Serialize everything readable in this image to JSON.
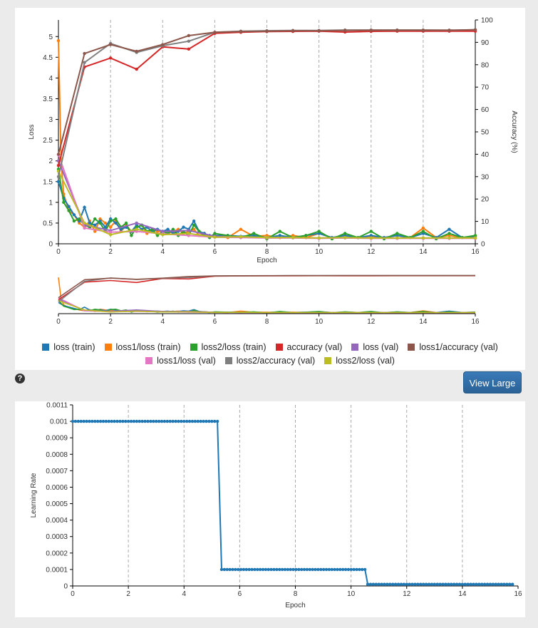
{
  "view_large_label": "View Large",
  "help_icon_glyph": "?",
  "colors": {
    "loss_train": "#1f77b4",
    "loss1_train": "#ff7f0e",
    "loss2_train": "#2ca02c",
    "accuracy_val": "#d62728",
    "loss_val": "#9467bd",
    "loss1_accuracy_val": "#8c564b",
    "loss1_loss_val": "#e377c2",
    "loss2_accuracy_val": "#7f7f7f",
    "loss2_loss_val": "#bcbd22",
    "lr": "#1f77b4"
  },
  "legend": [
    {
      "key": "loss_train",
      "label": "loss (train)"
    },
    {
      "key": "loss1_train",
      "label": "loss1/loss (train)"
    },
    {
      "key": "loss2_train",
      "label": "loss2/loss (train)"
    },
    {
      "key": "accuracy_val",
      "label": "accuracy (val)"
    },
    {
      "key": "loss_val",
      "label": "loss (val)"
    },
    {
      "key": "loss1_accuracy_val",
      "label": "loss1/accuracy (val)"
    },
    {
      "key": "loss1_loss_val",
      "label": "loss1/loss (val)"
    },
    {
      "key": "loss2_accuracy_val",
      "label": "loss2/accuracy (val)"
    },
    {
      "key": "loss2_loss_val",
      "label": "loss2/loss (val)"
    }
  ],
  "chart_data": [
    {
      "type": "line",
      "xlabel": "Epoch",
      "ylabel": "Loss",
      "y2label": "Accuracy (%)",
      "xlim": [
        0,
        16
      ],
      "ylim": [
        0,
        5.4
      ],
      "y2lim": [
        0,
        100
      ],
      "xticks": [
        "0",
        "2",
        "4",
        "6",
        "8",
        "10",
        "12",
        "14",
        "16"
      ],
      "yticks": [
        "0",
        "0.5",
        "1",
        "1.5",
        "2",
        "2.5",
        "3",
        "3.5",
        "4",
        "4.5",
        "5"
      ],
      "y2ticks": [
        "0",
        "10",
        "20",
        "30",
        "40",
        "50",
        "60",
        "70",
        "80",
        "90",
        "100"
      ],
      "grid": "vertical dashed",
      "series": [
        {
          "key": "accuracy_val",
          "axis": "right",
          "x": [
            0,
            1,
            2,
            3,
            4,
            5,
            6,
            7,
            8,
            9,
            10,
            11,
            12,
            13,
            14,
            15,
            16
          ],
          "y": [
            35,
            79,
            83,
            78,
            88,
            87,
            94,
            94.5,
            94.8,
            94.9,
            95,
            94.6,
            94.9,
            95,
            95,
            95,
            95
          ]
        },
        {
          "key": "loss1_accuracy_val",
          "axis": "right",
          "x": [
            0,
            1,
            2,
            3,
            4,
            5,
            6,
            7,
            8,
            9,
            10,
            11,
            12,
            13,
            14,
            15,
            16
          ],
          "y": [
            40,
            85,
            89,
            86,
            89,
            93,
            94.5,
            94.8,
            95,
            95.2,
            95.2,
            95.3,
            95.4,
            95.4,
            95.4,
            95.4,
            95.6
          ]
        },
        {
          "key": "loss2_accuracy_val",
          "axis": "right",
          "x": [
            0,
            1,
            2,
            3,
            4,
            5,
            6,
            7,
            8,
            9,
            10,
            11,
            12,
            13,
            14,
            15,
            16
          ],
          "y": [
            30,
            81,
            89.5,
            85.5,
            88.5,
            90.5,
            94.5,
            95,
            95.2,
            95.3,
            95.3,
            95.5,
            95.5,
            95.5,
            95.5,
            95.4,
            95.6
          ]
        },
        {
          "key": "loss_val",
          "axis": "left",
          "x": [
            0,
            1,
            2,
            3,
            4,
            5,
            6,
            7,
            8,
            9,
            10,
            11,
            12,
            13,
            14,
            15,
            16
          ],
          "y": [
            2.0,
            0.45,
            0.32,
            0.5,
            0.3,
            0.32,
            0.18,
            0.16,
            0.15,
            0.15,
            0.14,
            0.15,
            0.14,
            0.14,
            0.14,
            0.14,
            0.14
          ]
        },
        {
          "key": "loss1_loss_val",
          "axis": "left",
          "x": [
            0,
            1,
            2,
            3,
            4,
            5,
            6,
            7,
            8,
            9,
            10,
            11,
            12,
            13,
            14,
            15,
            16
          ],
          "y": [
            2.15,
            0.38,
            0.28,
            0.3,
            0.24,
            0.2,
            0.16,
            0.15,
            0.14,
            0.14,
            0.13,
            0.14,
            0.13,
            0.13,
            0.13,
            0.13,
            0.13
          ]
        },
        {
          "key": "loss2_loss_val",
          "axis": "left",
          "x": [
            0,
            1,
            2,
            3,
            4,
            5,
            6,
            7,
            8,
            9,
            10,
            11,
            12,
            13,
            14,
            15,
            16
          ],
          "y": [
            1.75,
            0.5,
            0.22,
            0.35,
            0.22,
            0.25,
            0.16,
            0.17,
            0.15,
            0.15,
            0.14,
            0.15,
            0.14,
            0.14,
            0.14,
            0.14,
            0.14
          ]
        },
        {
          "key": "loss_train",
          "axis": "left",
          "x": [
            0,
            0.2,
            0.4,
            0.6,
            0.8,
            1,
            1.2,
            1.4,
            1.6,
            1.8,
            2,
            2.2,
            2.4,
            2.6,
            2.8,
            3,
            3.2,
            3.4,
            3.6,
            3.8,
            4,
            4.2,
            4.4,
            4.6,
            4.8,
            5,
            5.2,
            5.4,
            5.6,
            5.8,
            6,
            6.5,
            7,
            7.5,
            8,
            8.5,
            9,
            9.5,
            10,
            10.5,
            11,
            11.5,
            12,
            12.5,
            13,
            13.5,
            14,
            14.5,
            15,
            15.5,
            16
          ],
          "y": [
            1.5,
            1.1,
            0.9,
            0.7,
            0.55,
            0.88,
            0.5,
            0.45,
            0.55,
            0.4,
            0.6,
            0.5,
            0.35,
            0.4,
            0.3,
            0.45,
            0.35,
            0.4,
            0.3,
            0.35,
            0.3,
            0.35,
            0.25,
            0.3,
            0.4,
            0.35,
            0.55,
            0.3,
            0.25,
            0.2,
            0.2,
            0.2,
            0.18,
            0.2,
            0.15,
            0.2,
            0.15,
            0.2,
            0.25,
            0.15,
            0.2,
            0.15,
            0.2,
            0.15,
            0.2,
            0.15,
            0.25,
            0.15,
            0.35,
            0.15,
            0.18
          ]
        },
        {
          "key": "loss1_train",
          "axis": "left",
          "x": [
            0,
            0.1,
            0.2,
            0.4,
            0.6,
            0.8,
            1,
            1.2,
            1.4,
            1.6,
            1.8,
            2,
            2.2,
            2.4,
            2.6,
            2.8,
            3,
            3.2,
            3.4,
            3.6,
            3.8,
            4,
            4.2,
            4.4,
            4.6,
            4.8,
            5,
            5.2,
            5.4,
            5.6,
            5.8,
            6,
            6.5,
            7,
            7.5,
            8,
            8.5,
            9,
            9.5,
            10,
            10.5,
            11,
            11.5,
            12,
            12.5,
            13,
            13.5,
            14,
            14.5,
            15,
            15.5,
            16
          ],
          "y": [
            4.9,
            2.0,
            1.2,
            0.8,
            0.7,
            0.5,
            0.4,
            0.55,
            0.3,
            0.6,
            0.5,
            0.4,
            0.55,
            0.3,
            0.45,
            0.3,
            0.4,
            0.45,
            0.25,
            0.35,
            0.3,
            0.3,
            0.25,
            0.3,
            0.35,
            0.25,
            0.3,
            0.35,
            0.2,
            0.25,
            0.18,
            0.2,
            0.15,
            0.35,
            0.18,
            0.2,
            0.15,
            0.2,
            0.15,
            0.25,
            0.15,
            0.2,
            0.15,
            0.18,
            0.15,
            0.2,
            0.15,
            0.38,
            0.15,
            0.2,
            0.15,
            0.18
          ]
        },
        {
          "key": "loss2_train",
          "axis": "left",
          "x": [
            0,
            0.2,
            0.4,
            0.6,
            0.8,
            1,
            1.2,
            1.4,
            1.6,
            1.8,
            2,
            2.2,
            2.4,
            2.6,
            2.8,
            3,
            3.2,
            3.4,
            3.6,
            3.8,
            4,
            4.2,
            4.4,
            4.6,
            4.8,
            5,
            5.2,
            5.4,
            5.6,
            5.8,
            6,
            6.5,
            7,
            7.5,
            8,
            8.5,
            9,
            9.5,
            10,
            10.5,
            11,
            11.5,
            12,
            12.5,
            13,
            13.5,
            14,
            14.5,
            15,
            15.5,
            16
          ],
          "y": [
            1.8,
            1.0,
            0.8,
            0.55,
            0.6,
            0.45,
            0.4,
            0.6,
            0.5,
            0.3,
            0.55,
            0.6,
            0.4,
            0.5,
            0.2,
            0.4,
            0.45,
            0.3,
            0.35,
            0.2,
            0.3,
            0.25,
            0.35,
            0.2,
            0.3,
            0.2,
            0.45,
            0.3,
            0.2,
            0.15,
            0.25,
            0.2,
            0.15,
            0.25,
            0.12,
            0.3,
            0.15,
            0.2,
            0.3,
            0.12,
            0.25,
            0.15,
            0.3,
            0.12,
            0.25,
            0.15,
            0.3,
            0.12,
            0.25,
            0.15,
            0.2
          ]
        }
      ]
    },
    {
      "type": "line",
      "role": "overview",
      "xlim": [
        0,
        16
      ],
      "xticks": [
        "0",
        "2",
        "4",
        "6",
        "8",
        "10",
        "12",
        "14",
        "16"
      ]
    },
    {
      "type": "line",
      "xlabel": "Epoch",
      "ylabel": "Learning Rate",
      "xlim": [
        0,
        16
      ],
      "ylim": [
        0,
        0.0011
      ],
      "xticks": [
        "0",
        "2",
        "4",
        "6",
        "8",
        "10",
        "12",
        "14",
        "16"
      ],
      "yticks": [
        "0",
        "0.0001",
        "0.0002",
        "0.0003",
        "0.0004",
        "0.0005",
        "0.0006",
        "0.0007",
        "0.0008",
        "0.0009",
        "0.001",
        "0.0011"
      ],
      "grid": "vertical dashed",
      "series": [
        {
          "key": "lr",
          "segments": [
            {
              "from": 0,
              "to": 5.2,
              "value": 0.001
            },
            {
              "from": 5.35,
              "to": 10.5,
              "value": 0.0001
            },
            {
              "from": 10.6,
              "to": 15.8,
              "value": 1e-05
            }
          ]
        }
      ]
    }
  ]
}
